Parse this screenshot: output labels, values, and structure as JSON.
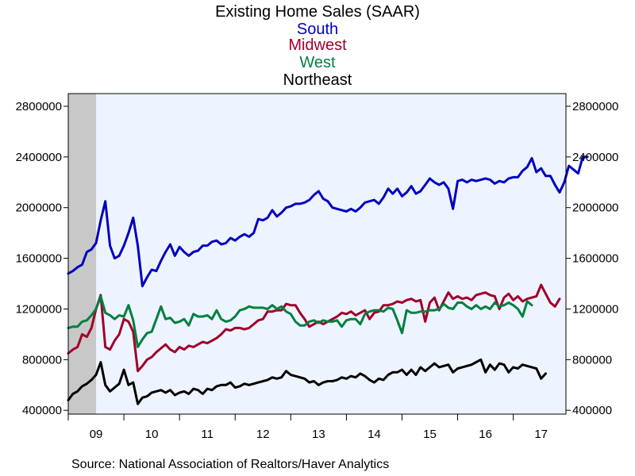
{
  "chart_data": {
    "type": "line",
    "title": "Existing Home Sales (SAAR)",
    "legend_placement": "top-center, stacked under title, colored text",
    "x_tick_labels": [
      "09",
      "10",
      "11",
      "12",
      "13",
      "14",
      "15",
      "16",
      "17"
    ],
    "x_start": "2009-01",
    "x_frequency": "monthly",
    "recession_shading": {
      "from": "2009-01",
      "to": "2009-06",
      "color": "#c8c8c8"
    },
    "ylim": [
      370000,
      2900000
    ],
    "y_ticks": [
      400000,
      800000,
      1200000,
      1600000,
      2000000,
      2400000,
      2800000
    ],
    "y_tick_labels": [
      "400000",
      "800000",
      "1200000",
      "1600000",
      "2000000",
      "2400000",
      "2800000"
    ],
    "dual_y_axis": true,
    "plot_background": "#eef4ff",
    "series": [
      {
        "name": "South",
        "color": "#0000c0",
        "values": [
          1480000,
          1500000,
          1530000,
          1550000,
          1650000,
          1670000,
          1720000,
          1900000,
          2050000,
          1700000,
          1600000,
          1620000,
          1700000,
          1800000,
          1920000,
          1700000,
          1380000,
          1450000,
          1510000,
          1500000,
          1580000,
          1650000,
          1710000,
          1620000,
          1690000,
          1650000,
          1620000,
          1650000,
          1660000,
          1700000,
          1700000,
          1730000,
          1740000,
          1710000,
          1720000,
          1760000,
          1740000,
          1770000,
          1790000,
          1770000,
          1800000,
          1910000,
          1900000,
          1920000,
          1980000,
          1930000,
          1960000,
          2000000,
          2010000,
          2030000,
          2030000,
          2040000,
          2060000,
          2100000,
          2130000,
          2070000,
          2050000,
          2000000,
          1990000,
          1980000,
          1970000,
          1990000,
          1970000,
          2000000,
          2040000,
          2050000,
          2060000,
          2030000,
          2080000,
          2150000,
          2110000,
          2150000,
          2090000,
          2120000,
          2170000,
          2110000,
          2130000,
          2180000,
          2230000,
          2200000,
          2180000,
          2200000,
          2150000,
          1990000,
          2210000,
          2220000,
          2200000,
          2220000,
          2210000,
          2220000,
          2230000,
          2220000,
          2190000,
          2210000,
          2200000,
          2230000,
          2240000,
          2240000,
          2290000,
          2320000,
          2390000,
          2280000,
          2310000,
          2250000,
          2250000,
          2180000,
          2120000,
          2200000,
          2330000,
          2300000,
          2270000,
          2400000,
          2400000
        ]
      },
      {
        "name": "Midwest",
        "color": "#a0002a",
        "values": [
          850000,
          880000,
          900000,
          1000000,
          980000,
          1050000,
          1200000,
          1310000,
          900000,
          880000,
          950000,
          1000000,
          1120000,
          1100000,
          1020000,
          710000,
          750000,
          800000,
          820000,
          860000,
          890000,
          920000,
          880000,
          860000,
          900000,
          880000,
          910000,
          900000,
          920000,
          940000,
          930000,
          950000,
          970000,
          1000000,
          1040000,
          1030000,
          1050000,
          1050000,
          1040000,
          1050000,
          1080000,
          1110000,
          1120000,
          1180000,
          1180000,
          1190000,
          1190000,
          1240000,
          1230000,
          1230000,
          1170000,
          1120000,
          1060000,
          1080000,
          1100000,
          1080000,
          1100000,
          1120000,
          1140000,
          1170000,
          1160000,
          1180000,
          1150000,
          1170000,
          1190000,
          1120000,
          1170000,
          1180000,
          1230000,
          1230000,
          1240000,
          1260000,
          1250000,
          1270000,
          1280000,
          1260000,
          1270000,
          1100000,
          1250000,
          1290000,
          1190000,
          1260000,
          1330000,
          1280000,
          1300000,
          1280000,
          1290000,
          1270000,
          1310000,
          1320000,
          1330000,
          1310000,
          1300000,
          1200000,
          1290000,
          1320000,
          1270000,
          1300000,
          1260000,
          1280000,
          1290000,
          1300000,
          1390000,
          1320000,
          1250000,
          1220000,
          1280000
        ]
      },
      {
        "name": "West",
        "color": "#008040",
        "values": [
          1050000,
          1060000,
          1060000,
          1100000,
          1110000,
          1150000,
          1200000,
          1300000,
          1170000,
          1150000,
          1120000,
          1150000,
          1140000,
          1230000,
          1110000,
          900000,
          960000,
          1010000,
          1020000,
          1120000,
          1220000,
          1120000,
          1130000,
          1090000,
          1100000,
          1120000,
          1070000,
          1160000,
          1140000,
          1140000,
          1150000,
          1120000,
          1190000,
          1120000,
          1100000,
          1110000,
          1140000,
          1190000,
          1200000,
          1220000,
          1210000,
          1210000,
          1210000,
          1200000,
          1230000,
          1200000,
          1220000,
          1180000,
          1160000,
          1100000,
          1070000,
          1070000,
          1100000,
          1110000,
          1090000,
          1110000,
          1100000,
          1100000,
          1110000,
          1060000,
          1110000,
          1120000,
          1120000,
          1080000,
          1160000,
          1180000,
          1190000,
          1190000,
          1180000,
          1210000,
          1200000,
          1110000,
          1010000,
          1190000,
          1170000,
          1170000,
          1180000,
          1180000,
          1190000,
          1190000,
          1200000,
          1240000,
          1210000,
          1200000,
          1250000,
          1250000,
          1220000,
          1200000,
          1230000,
          1200000,
          1220000,
          1200000,
          1250000,
          1220000,
          1230000,
          1250000,
          1230000,
          1200000,
          1140000,
          1260000,
          1230000
        ]
      },
      {
        "name": "Northeast",
        "color": "#000000",
        "values": [
          480000,
          530000,
          550000,
          590000,
          610000,
          640000,
          680000,
          780000,
          600000,
          550000,
          580000,
          610000,
          720000,
          600000,
          620000,
          450000,
          500000,
          510000,
          540000,
          550000,
          560000,
          540000,
          560000,
          520000,
          540000,
          550000,
          530000,
          570000,
          560000,
          530000,
          570000,
          560000,
          590000,
          600000,
          600000,
          620000,
          580000,
          590000,
          610000,
          600000,
          610000,
          620000,
          630000,
          640000,
          660000,
          650000,
          660000,
          710000,
          680000,
          670000,
          660000,
          650000,
          620000,
          630000,
          600000,
          620000,
          630000,
          630000,
          640000,
          660000,
          650000,
          670000,
          660000,
          690000,
          670000,
          640000,
          620000,
          650000,
          640000,
          680000,
          700000,
          700000,
          720000,
          680000,
          720000,
          680000,
          740000,
          710000,
          740000,
          770000,
          740000,
          750000,
          760000,
          700000,
          730000,
          740000,
          750000,
          760000,
          780000,
          800000,
          700000,
          760000,
          720000,
          770000,
          760000,
          700000,
          740000,
          730000,
          760000,
          750000,
          740000,
          730000,
          650000,
          690000
        ]
      }
    ]
  },
  "source": "Source:  National Association of Realtors/Haver Analytics"
}
